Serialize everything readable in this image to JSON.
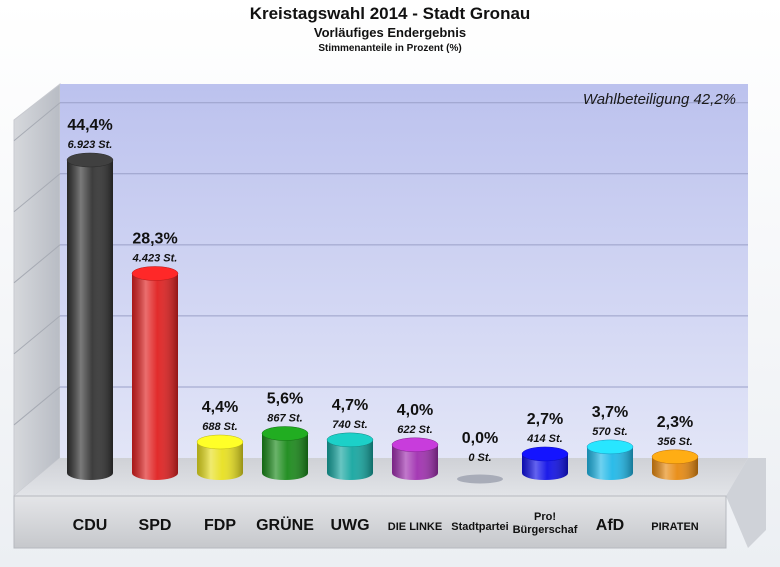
{
  "title": "Kreistagswahl 2014 - Stadt Gronau",
  "subtitle": "Vorläufiges Endergebnis",
  "note": "Stimmenanteile in Prozent (%)",
  "turnout": "Wahlbeteiligung 42,2%",
  "chart_data": {
    "type": "bar",
    "title": "Kreistagswahl 2014 - Stadt Gronau",
    "subtitle": "Vorläufiges Endergebnis",
    "ylabel": "Stimmenanteile in Prozent (%)",
    "ylim": [
      0,
      50
    ],
    "grid": true,
    "categories": [
      "CDU",
      "SPD",
      "FDP",
      "GRÜNE",
      "UWG",
      "DIE LINKE",
      "Stadtpartei",
      "Pro! Bürgerschaf",
      "AfD",
      "PIRATEN"
    ],
    "values": [
      44.4,
      28.3,
      4.4,
      5.6,
      4.7,
      4.0,
      0.0,
      2.7,
      3.7,
      2.3
    ],
    "value_labels": [
      "44,4%",
      "28,3%",
      "4,4%",
      "5,6%",
      "4,7%",
      "4,0%",
      "0,0%",
      "2,7%",
      "3,7%",
      "2,3%"
    ],
    "votes": [
      6923,
      4423,
      688,
      867,
      740,
      622,
      0,
      414,
      570,
      356
    ],
    "vote_labels": [
      "6.923 St.",
      "4.423 St.",
      "688 St.",
      "867 St.",
      "740 St.",
      "622 St.",
      "0 St.",
      "414 St.",
      "570 St.",
      "356 St."
    ],
    "colors": [
      "#333333",
      "#e02020",
      "#e8e020",
      "#1a8a1a",
      "#16a6a0",
      "#a030b0",
      "#c7cad6",
      "#1010e8",
      "#20b8e8",
      "#e88a10"
    ]
  }
}
